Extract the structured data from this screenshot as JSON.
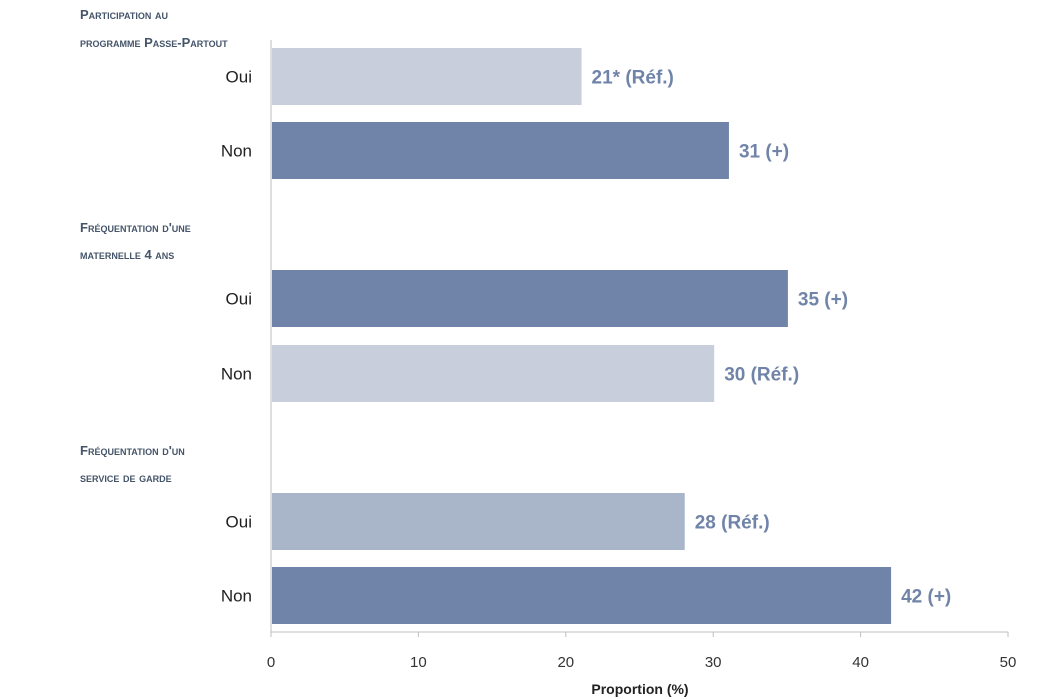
{
  "chart_data": {
    "type": "bar",
    "orientation": "horizontal",
    "xlabel": "Proportion (%)",
    "xlim": [
      0,
      50
    ],
    "xticks": [
      0,
      10,
      20,
      30,
      40,
      50
    ],
    "grid": false,
    "legend": "none",
    "groups": [
      {
        "label_lines": [
          "Participation au",
          "programme Passe-Partout"
        ],
        "bars": [
          {
            "category": "Oui",
            "value": 21,
            "label": "21* (Réf.)",
            "color": "#c8cedb"
          },
          {
            "category": "Non",
            "value": 31,
            "label": "31 (+)",
            "color": "#7083a8"
          }
        ]
      },
      {
        "label_lines": [
          "Fréquentation d'une",
          "maternelle 4 ans"
        ],
        "bars": [
          {
            "category": "Oui",
            "value": 35,
            "label": "35 (+)",
            "color": "#7083a8"
          },
          {
            "category": "Non",
            "value": 30,
            "label": "30 (Réf.)",
            "color": "#c8cedb"
          }
        ]
      },
      {
        "label_lines": [
          "Fréquentation d'un",
          "service de garde"
        ],
        "bars": [
          {
            "category": "Oui",
            "value": 28,
            "label": "28 (Réf.)",
            "color": "#a9b5c9"
          },
          {
            "category": "Non",
            "value": 42,
            "label": "42 (+)",
            "color": "#7083a8"
          }
        ]
      }
    ],
    "colors": {
      "axis": "#bfbfbf",
      "value_label": "#7083a8",
      "group_label": "#44546a"
    }
  }
}
